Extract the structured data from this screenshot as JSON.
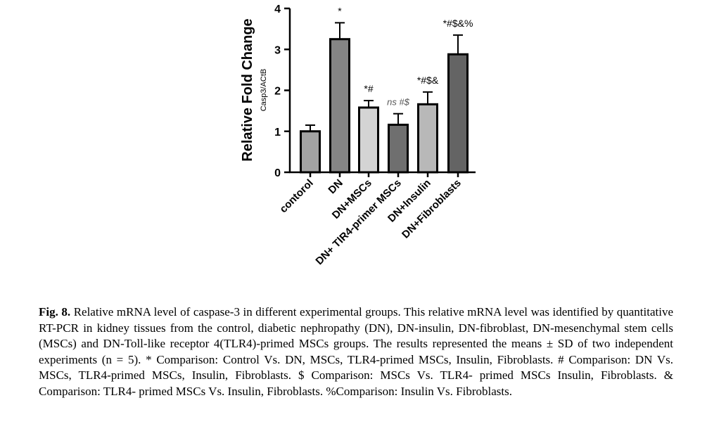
{
  "chart_data": {
    "type": "bar",
    "ylabel": "Relative Fold Change",
    "ysublabel": "Casp3/ACtB",
    "ylim": [
      0,
      4
    ],
    "yticks": [
      "0",
      "1",
      "2",
      "3",
      "4"
    ],
    "categories": [
      "contorol",
      "DN",
      "DN+MSCs",
      "DN+ TlR4-primer MSCs",
      "DN+Insulin",
      "DN+Fibroblasts"
    ],
    "values": [
      1.0,
      3.25,
      1.58,
      1.16,
      1.66,
      2.88
    ],
    "errors": [
      0.15,
      0.4,
      0.17,
      0.27,
      0.3,
      0.47
    ],
    "annotations": [
      "",
      "*",
      "*#",
      "ns #$",
      "*#$&",
      "*#$&%"
    ],
    "colors": {
      "bars": [
        "#a3a3a3",
        "#858585",
        "#d4d4d4",
        "#6f6f6f",
        "#b8b8b8",
        "#646464"
      ],
      "axis": "#000000"
    },
    "grid": false
  },
  "caption": {
    "label": "Fig. 8.",
    "text": "Relative mRNA level of caspase-3 in different experimental groups. This relative mRNA level was identified by quantitative RT-PCR in kidney tissues from the control, diabetic nephropathy (DN), DN-insulin, DN-fibroblast, DN-mesenchymal stem cells (MSCs) and DN-Toll-like receptor 4(TLR4)-primed MSCs groups. The results represented the means ± SD of two independent experiments (n = 5).  * Comparison: Control Vs. DN, MSCs, TLR4-primed MSCs, Insulin, Fibroblasts. # Comparison: DN Vs. MSCs, TLR4-primed MSCs, Insulin, Fibroblasts. $ Comparison: MSCs Vs. TLR4- primed MSCs Insulin, Fibroblasts. & Comparison: TLR4- primed MSCs Vs. Insulin, Fibroblasts. %Comparison: Insulin Vs. Fibroblasts."
  }
}
